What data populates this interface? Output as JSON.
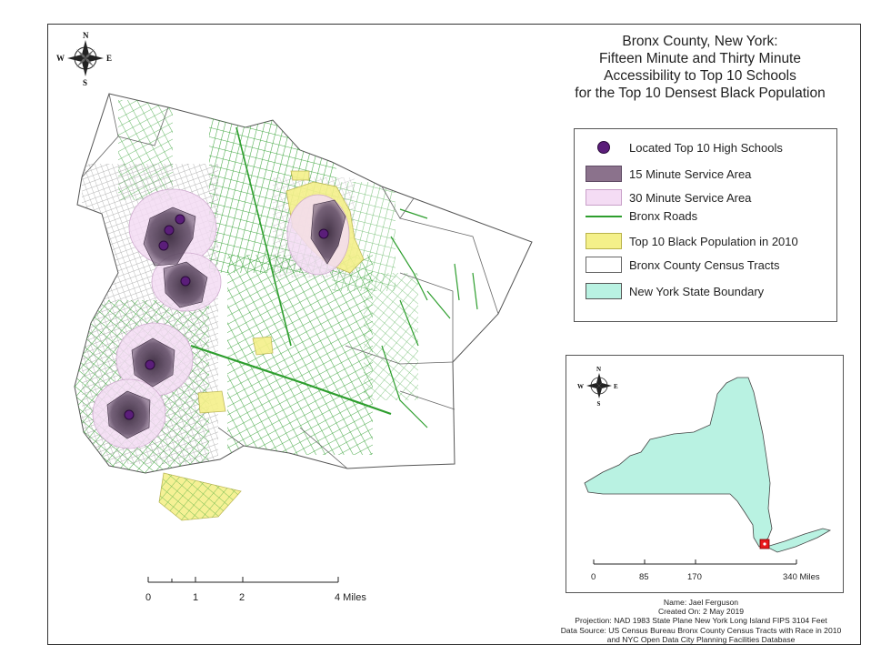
{
  "title_lines": [
    "Bronx County, New York:",
    "Fifteen Minute and Thirty Minute",
    "Accessibility to Top 10 Schools",
    "for the Top 10 Densest Black Population"
  ],
  "legend": {
    "items": [
      {
        "label": "Located Top 10 High Schools",
        "symbol": "circle",
        "color": "#5b1e7a"
      },
      {
        "label": "15 Minute Service Area",
        "symbol": "box",
        "color": "#8b728c"
      },
      {
        "label": "30 Minute Service Area",
        "symbol": "box",
        "color": "#f4dcf4"
      },
      {
        "label": "Bronx Roads",
        "symbol": "line",
        "color": "#2e9e2e"
      },
      {
        "label": "Top 10 Black Population in 2010",
        "symbol": "box",
        "color": "#f4f08a"
      },
      {
        "label": "Bronx County Census Tracts",
        "symbol": "box",
        "color": "#ffffff"
      },
      {
        "label": "New York State Boundary",
        "symbol": "box",
        "color": "#b9f2e2"
      }
    ]
  },
  "compass": {
    "n": "N",
    "s": "S",
    "e": "E",
    "w": "W"
  },
  "main_scale": {
    "ticks": [
      "0",
      "1",
      "2",
      "4 Miles"
    ]
  },
  "inset_scale": {
    "ticks": [
      "0",
      "85",
      "170",
      "340 Miles"
    ]
  },
  "credits": [
    "Name: Jael Ferguson",
    "Created On: 2 May 2019",
    "Projection: NAD 1983 State Plane New York Long Island FIPS 3104 Feet",
    "Data Source: US Census Bureau Bronx County Census Tracts with Race in 2010",
    "and NYC Open Data City Planning Facilities Database"
  ],
  "colors": {
    "roads": "#2e9e2e",
    "service15": "#5e4a63",
    "service30": "#f4dcf4",
    "black_pop": "#f4f08a",
    "ny_state": "#b9f2e2",
    "school": "#5b1e7a",
    "inset_marker": "#e8191c"
  }
}
